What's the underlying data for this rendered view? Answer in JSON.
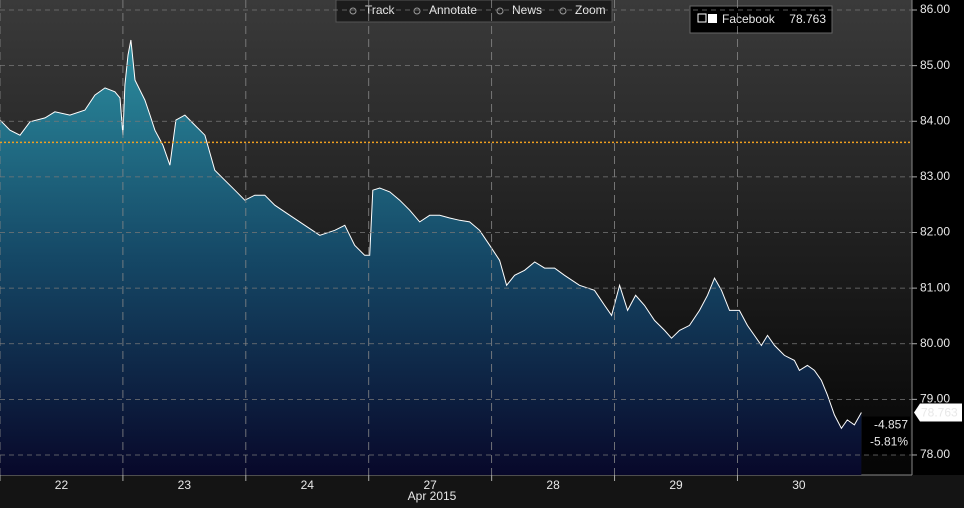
{
  "chart_data": {
    "type": "area",
    "toolbar": [
      "Track",
      "Annotate",
      "News",
      "Zoom"
    ],
    "xlabel": "Apr 2015",
    "xlim": [
      0,
      7.42
    ],
    "xticks": [
      {
        "value": 0,
        "label": "22"
      },
      {
        "value": 1,
        "label": "23"
      },
      {
        "value": 2,
        "label": "24"
      },
      {
        "value": 3,
        "label": "27"
      },
      {
        "value": 4,
        "label": "28"
      },
      {
        "value": 5,
        "label": "29"
      },
      {
        "value": 6,
        "label": "30"
      }
    ],
    "ylim": [
      77.64,
      86.18
    ],
    "yticks": [
      {
        "value": 78,
        "label": "78.00"
      },
      {
        "value": 79,
        "label": "79.00"
      },
      {
        "value": 80,
        "label": "80.00"
      },
      {
        "value": 81,
        "label": "81.00"
      },
      {
        "value": 82,
        "label": "82.00"
      },
      {
        "value": 83,
        "label": "83.00"
      },
      {
        "value": 84,
        "label": "84.00"
      },
      {
        "value": 85,
        "label": "85.00"
      },
      {
        "value": 86,
        "label": "86.00"
      }
    ],
    "grid": true,
    "reference_line": 83.62,
    "reference_color": "#f0a020",
    "change_labels": [
      "-4.857",
      "-5.81%"
    ],
    "x": [
      0,
      0.081,
      0.163,
      0.244,
      0.366,
      0.447,
      0.569,
      0.691,
      0.772,
      0.854,
      0.935,
      0.976,
      1.0,
      1.016,
      1.041,
      1.065,
      1.098,
      1.179,
      1.22,
      1.26,
      1.325,
      1.382,
      1.431,
      1.504,
      1.585,
      1.667,
      1.748,
      1.829,
      1.911,
      1.992,
      2.073,
      2.154,
      2.236,
      2.358,
      2.48,
      2.602,
      2.724,
      2.805,
      2.886,
      2.967,
      3.008,
      3.033,
      3.089,
      3.171,
      3.252,
      3.333,
      3.415,
      3.496,
      3.577,
      3.659,
      3.74,
      3.821,
      3.902,
      3.984,
      4.065,
      4.122,
      4.187,
      4.268,
      4.35,
      4.431,
      4.512,
      4.593,
      4.715,
      4.837,
      4.919,
      4.976,
      5.041,
      5.106,
      5.171,
      5.244,
      5.325,
      5.407,
      5.463,
      5.528,
      5.61,
      5.691,
      5.756,
      5.813,
      5.87,
      5.935,
      6.016,
      6.081,
      6.138,
      6.195,
      6.244,
      6.301,
      6.382,
      6.463,
      6.504,
      6.569,
      6.626,
      6.683,
      6.732,
      6.789,
      6.846,
      6.894,
      6.951,
      7.008
    ],
    "series": [
      {
        "name": "Facebook",
        "color": "#ffffff",
        "values": [
          84.02,
          83.84,
          83.75,
          83.99,
          84.06,
          84.17,
          84.11,
          84.2,
          84.47,
          84.6,
          84.53,
          84.42,
          83.75,
          84.65,
          85.19,
          85.46,
          84.74,
          84.38,
          84.11,
          83.84,
          83.57,
          83.21,
          84.02,
          84.11,
          83.93,
          83.75,
          83.12,
          82.94,
          82.76,
          82.58,
          82.67,
          82.67,
          82.49,
          82.31,
          82.13,
          81.95,
          82.04,
          82.13,
          81.77,
          81.59,
          81.59,
          82.76,
          82.8,
          82.73,
          82.58,
          82.4,
          82.19,
          82.31,
          82.31,
          82.26,
          82.22,
          82.19,
          82.04,
          81.77,
          81.5,
          81.05,
          81.23,
          81.32,
          81.47,
          81.36,
          81.36,
          81.23,
          81.05,
          80.96,
          80.69,
          80.51,
          81.05,
          80.6,
          80.87,
          80.69,
          80.42,
          80.24,
          80.1,
          80.24,
          80.33,
          80.6,
          80.87,
          81.18,
          80.96,
          80.6,
          80.6,
          80.33,
          80.15,
          79.97,
          80.15,
          79.97,
          79.79,
          79.7,
          79.52,
          79.61,
          79.52,
          79.34,
          79.08,
          78.72,
          78.48,
          78.63,
          78.54,
          78.763
        ]
      }
    ]
  }
}
